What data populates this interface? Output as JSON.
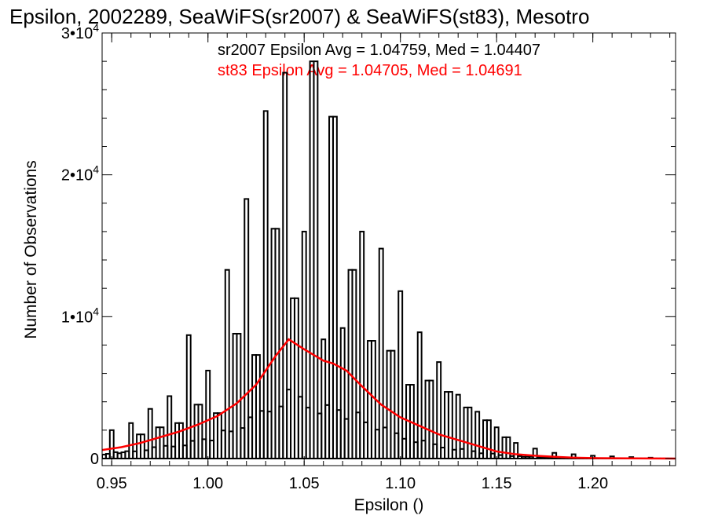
{
  "chart_data": {
    "type": "histogram",
    "title": "Epsilon, 2002289, SeaWiFS(sr2007) & SeaWiFS(st83), Mesotro",
    "xlabel": "Epsilon ()",
    "ylabel": "Number of Observations",
    "xlim": [
      0.945,
      1.243
    ],
    "ylim": [
      -500,
      30000
    ],
    "x_ticks": [
      0.95,
      1.0,
      1.05,
      1.1,
      1.15,
      1.2
    ],
    "x_tick_labels": [
      "0.95",
      "1.00",
      "1.05",
      "1.10",
      "1.15",
      "1.20"
    ],
    "y_ticks": [
      {
        "value": 0,
        "base": "0",
        "exp": ""
      },
      {
        "value": 10000,
        "base": "1•10",
        "exp": "4"
      },
      {
        "value": 20000,
        "base": "2•10",
        "exp": "4"
      },
      {
        "value": 30000,
        "base": "3•10",
        "exp": "4"
      }
    ],
    "grid": false,
    "annotations": [
      {
        "text": "sr2007 Epsilon Avg = 1.04759, Med = 1.04407",
        "color": "#000000"
      },
      {
        "text": "st83 Epsilon Avg = 1.04705, Med = 1.04691",
        "color": "#ff0000"
      }
    ],
    "series": [
      {
        "label": "sr2007",
        "style": "step-histogram",
        "color": "#000000",
        "bin_width": 0.002,
        "peaks": [
          [
            0.95,
            2000
          ],
          [
            0.96,
            2500
          ],
          [
            0.965,
            1700
          ],
          [
            0.97,
            3500
          ],
          [
            0.975,
            2200
          ],
          [
            0.98,
            4400
          ],
          [
            0.985,
            2500
          ],
          [
            0.99,
            8700
          ],
          [
            0.995,
            3800
          ],
          [
            1.0,
            6200
          ],
          [
            1.005,
            3200
          ],
          [
            1.01,
            13300
          ],
          [
            1.015,
            8800
          ],
          [
            1.02,
            18300
          ],
          [
            1.025,
            7300
          ],
          [
            1.03,
            24500
          ],
          [
            1.035,
            16200
          ],
          [
            1.04,
            27200
          ],
          [
            1.045,
            11300
          ],
          [
            1.05,
            16000
          ],
          [
            1.055,
            28000
          ],
          [
            1.06,
            8400
          ],
          [
            1.065,
            24100
          ],
          [
            1.07,
            9200
          ],
          [
            1.075,
            13300
          ],
          [
            1.08,
            16000
          ],
          [
            1.085,
            8300
          ],
          [
            1.09,
            14800
          ],
          [
            1.095,
            7600
          ],
          [
            1.1,
            11800
          ],
          [
            1.105,
            5200
          ],
          [
            1.11,
            8900
          ],
          [
            1.115,
            5500
          ],
          [
            1.12,
            6800
          ],
          [
            1.125,
            4700
          ],
          [
            1.13,
            4500
          ],
          [
            1.135,
            3600
          ],
          [
            1.14,
            3300
          ],
          [
            1.145,
            2700
          ],
          [
            1.15,
            2200
          ],
          [
            1.155,
            1500
          ],
          [
            1.16,
            1100
          ],
          [
            1.17,
            700
          ],
          [
            1.18,
            400
          ],
          [
            1.19,
            300
          ],
          [
            1.2,
            200
          ],
          [
            1.21,
            150
          ],
          [
            1.22,
            100
          ],
          [
            1.23,
            60
          ]
        ]
      },
      {
        "label": "st83",
        "style": "line",
        "color": "#ff0000",
        "points": [
          [
            0.945,
            600
          ],
          [
            0.955,
            800
          ],
          [
            0.965,
            1100
          ],
          [
            0.975,
            1500
          ],
          [
            0.985,
            1900
          ],
          [
            0.995,
            2400
          ],
          [
            1.005,
            3000
          ],
          [
            1.015,
            3900
          ],
          [
            1.025,
            5200
          ],
          [
            1.035,
            7200
          ],
          [
            1.042,
            8400
          ],
          [
            1.05,
            7700
          ],
          [
            1.06,
            6900
          ],
          [
            1.065,
            6700
          ],
          [
            1.072,
            6200
          ],
          [
            1.08,
            5100
          ],
          [
            1.09,
            3800
          ],
          [
            1.1,
            2900
          ],
          [
            1.11,
            2300
          ],
          [
            1.12,
            1700
          ],
          [
            1.13,
            1300
          ],
          [
            1.14,
            900
          ],
          [
            1.15,
            500
          ],
          [
            1.16,
            300
          ],
          [
            1.17,
            200
          ],
          [
            1.18,
            120
          ],
          [
            1.19,
            60
          ],
          [
            1.2,
            30
          ],
          [
            1.22,
            10
          ],
          [
            1.243,
            0
          ]
        ]
      }
    ]
  }
}
